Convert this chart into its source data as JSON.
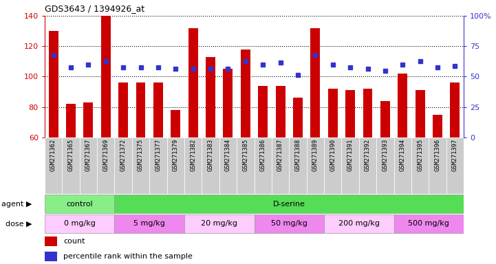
{
  "title": "GDS3643 / 1394926_at",
  "samples": [
    "GSM271362",
    "GSM271365",
    "GSM271367",
    "GSM271369",
    "GSM271372",
    "GSM271375",
    "GSM271377",
    "GSM271379",
    "GSM271382",
    "GSM271383",
    "GSM271384",
    "GSM271385",
    "GSM271386",
    "GSM271387",
    "GSM271388",
    "GSM271389",
    "GSM271390",
    "GSM271391",
    "GSM271392",
    "GSM271393",
    "GSM271394",
    "GSM271395",
    "GSM271396",
    "GSM271397"
  ],
  "counts": [
    130,
    82,
    83,
    140,
    96,
    96,
    96,
    78,
    132,
    113,
    105,
    118,
    94,
    94,
    86,
    132,
    92,
    91,
    92,
    84,
    102,
    91,
    75,
    96
  ],
  "percentile": [
    114,
    106,
    108,
    110,
    106,
    106,
    106,
    105,
    105,
    105,
    105,
    110,
    108,
    109,
    101,
    114,
    108,
    106,
    105,
    104,
    108,
    110,
    106,
    107
  ],
  "bar_color": "#cc0000",
  "dot_color": "#3333cc",
  "ylim_left": [
    60,
    140
  ],
  "ylim_right": [
    0,
    100
  ],
  "yticks_left": [
    60,
    80,
    100,
    120,
    140
  ],
  "yticks_right": [
    0,
    25,
    50,
    75,
    100
  ],
  "agent_groups": [
    {
      "label": "control",
      "start": 0,
      "end": 4,
      "color": "#88ee88"
    },
    {
      "label": "D-serine",
      "start": 4,
      "end": 24,
      "color": "#55dd55"
    }
  ],
  "dose_groups": [
    {
      "label": "0 mg/kg",
      "start": 0,
      "end": 4,
      "color": "#ffccff"
    },
    {
      "label": "5 mg/kg",
      "start": 4,
      "end": 8,
      "color": "#ee88ee"
    },
    {
      "label": "20 mg/kg",
      "start": 8,
      "end": 12,
      "color": "#ffccff"
    },
    {
      "label": "50 mg/kg",
      "start": 12,
      "end": 16,
      "color": "#ee88ee"
    },
    {
      "label": "200 mg/kg",
      "start": 16,
      "end": 20,
      "color": "#ffccff"
    },
    {
      "label": "500 mg/kg",
      "start": 20,
      "end": 24,
      "color": "#ee88ee"
    }
  ]
}
